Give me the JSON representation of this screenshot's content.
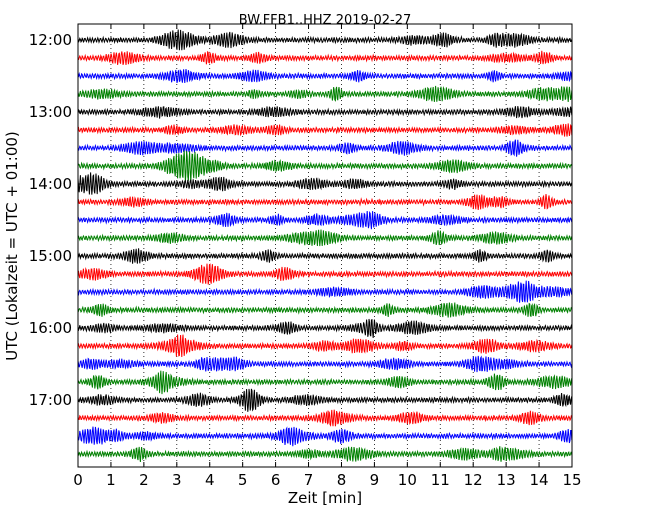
{
  "chart_data": {
    "type": "line",
    "title": "BW.FFB1..HHZ 2019-02-27",
    "xlabel": "Zeit  [min]",
    "ylabel": "UTC (Lokalzeit = UTC + 01:00)",
    "xlim": [
      0,
      15
    ],
    "x_ticks": [
      "0",
      "1",
      "2",
      "3",
      "4",
      "5",
      "6",
      "7",
      "8",
      "9",
      "10",
      "11",
      "12",
      "13",
      "14",
      "15"
    ],
    "y_ticks": [
      "12:00",
      "13:00",
      "14:00",
      "15:00",
      "16:00",
      "17:00"
    ],
    "grid": "vertical dotted",
    "trace_colors": [
      "#000000",
      "#ff0000",
      "#0000ff",
      "#008000"
    ],
    "traces_per_hour": 4,
    "trace_rows": 24,
    "trace_start_times": [
      "12:00",
      "12:15",
      "12:30",
      "12:45",
      "13:00",
      "13:15",
      "13:30",
      "13:45",
      "14:00",
      "14:15",
      "14:30",
      "14:45",
      "15:00",
      "15:15",
      "15:30",
      "15:45",
      "16:00",
      "16:15",
      "16:30",
      "16:45",
      "17:00",
      "17:15",
      "17:30",
      "17:45"
    ]
  }
}
